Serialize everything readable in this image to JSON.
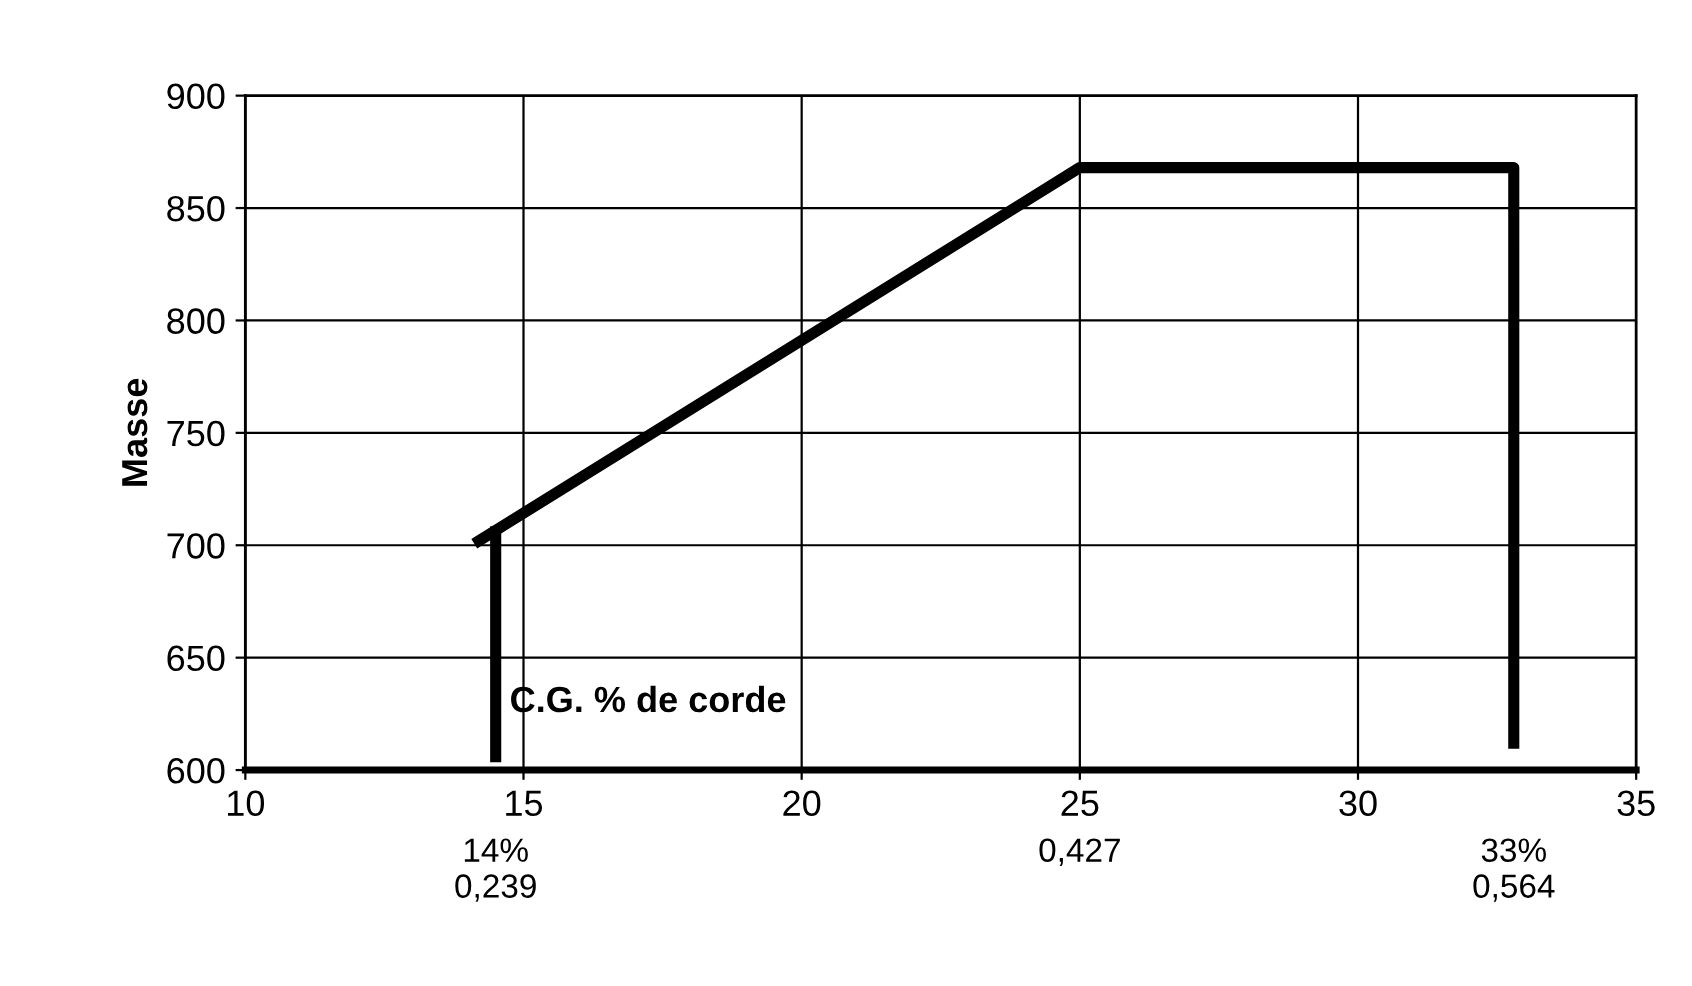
{
  "chart_data": {
    "type": "line",
    "ylabel": "Masse",
    "xlabel": "C.G. % de corde",
    "series": [
      {
        "color": "#000000",
        "x": [
          14.2,
          25,
          32.8,
          32.8
        ],
        "values": [
          702,
          868,
          868,
          612
        ]
      },
      {
        "color": "#000000",
        "x": [
          14.5,
          14.5
        ],
        "values": [
          606,
          706
        ]
      }
    ],
    "xlim": [
      10,
      35
    ],
    "xticks": [
      10,
      15,
      20,
      25,
      30,
      35
    ],
    "ylim": [
      600,
      900
    ],
    "yticks": [
      600,
      650,
      700,
      750,
      800,
      850,
      900
    ],
    "grid": true,
    "marker": "none",
    "line_style": "solid",
    "legend": false,
    "annotations": [
      "14%\n0,239",
      "0,427",
      "33%\n0,564"
    ]
  }
}
